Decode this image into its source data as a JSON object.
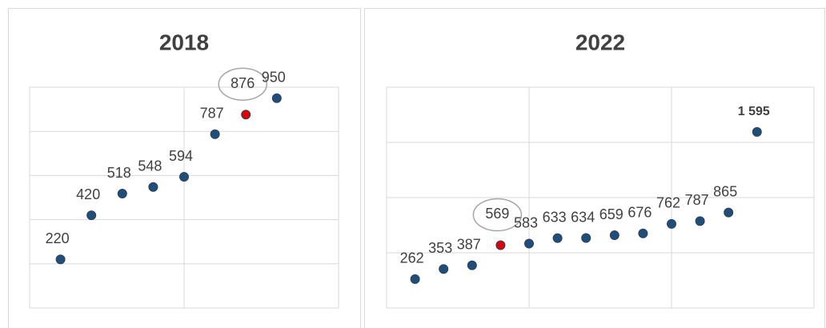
{
  "chart_data": [
    {
      "type": "scatter",
      "title": "2018",
      "x": [
        1,
        2,
        3,
        4,
        5,
        6,
        7,
        8
      ],
      "values": [
        220,
        420,
        518,
        548,
        594,
        787,
        876,
        950
      ],
      "color": "#1f4e79",
      "highlight_index": 6,
      "highlight_color": "#e00000",
      "xlim": [
        0,
        10
      ],
      "xticks": [
        0,
        5,
        10
      ],
      "ylim": [
        0,
        1000
      ],
      "yticks": [
        0,
        200,
        400,
        600,
        800,
        1000
      ],
      "grid": true
    },
    {
      "type": "scatter",
      "title": "2022",
      "x": [
        1,
        2,
        3,
        4,
        5,
        6,
        7,
        8,
        9,
        10,
        11,
        12,
        13
      ],
      "values": [
        262,
        353,
        387,
        569,
        583,
        633,
        634,
        659,
        676,
        762,
        787,
        865,
        1595
      ],
      "value_labels": [
        "262",
        "353",
        "387",
        "569",
        "583",
        "633",
        "634",
        "659",
        "676",
        "762",
        "787",
        "865",
        "1 595"
      ],
      "bold_labels": [
        12
      ],
      "color": "#1f4e79",
      "highlight_index": 3,
      "highlight_color": "#e00000",
      "xlim": [
        0,
        15
      ],
      "xticks": [
        0,
        5,
        10,
        15
      ],
      "ylim": [
        0,
        2000
      ],
      "yticks": [
        0,
        500,
        1000,
        1500,
        2000
      ],
      "grid": true
    }
  ]
}
